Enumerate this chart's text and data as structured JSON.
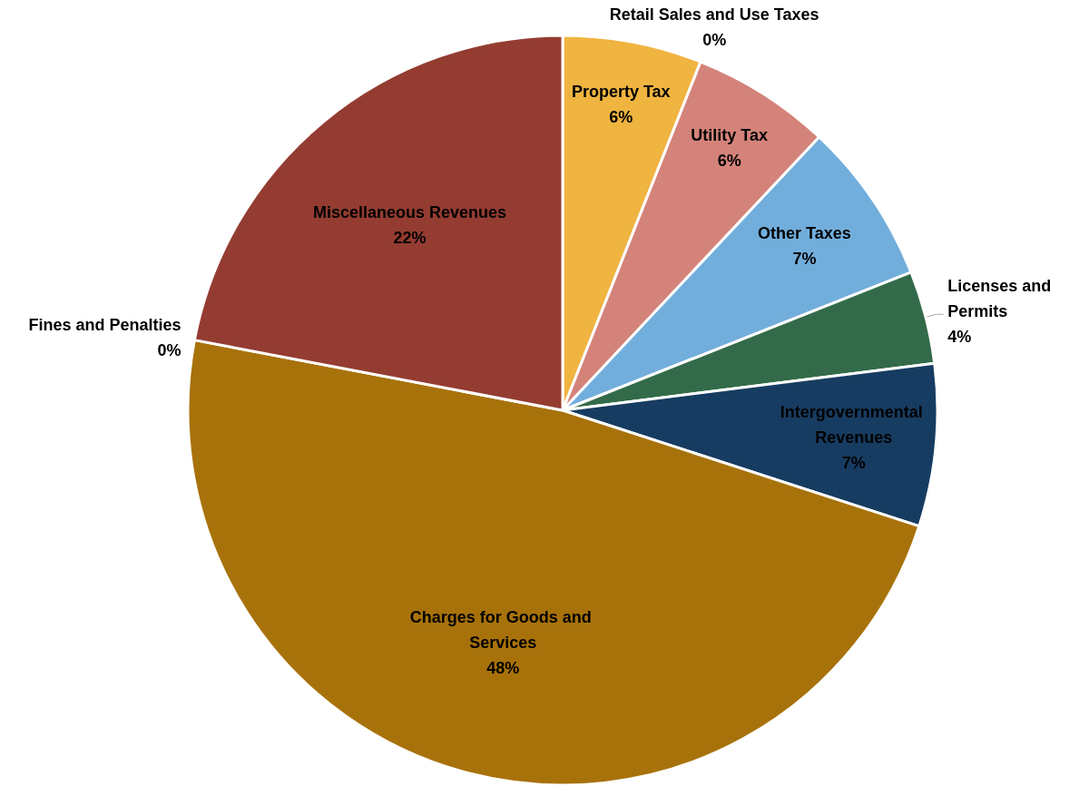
{
  "chart_data": {
    "type": "pie",
    "categories": [
      "Property Tax",
      "Retail Sales and Use Taxes",
      "Utility Tax",
      "Other Taxes",
      "Licenses and Permits",
      "Intergovernmental Revenues",
      "Charges for Goods and Services",
      "Fines and Penalties",
      "Miscellaneous Revenues"
    ],
    "values": [
      6,
      0,
      6,
      7,
      4,
      7,
      48,
      0,
      22
    ],
    "value_labels": [
      "6%",
      "0%",
      "6%",
      "7%",
      "4%",
      "7%",
      "48%",
      "0%",
      "22%"
    ],
    "colors": [
      "#f0b441",
      "#a5a5a5",
      "#d4837a",
      "#72aedc",
      "#336b4a",
      "#173c61",
      "#a8720b",
      "#7f7f7f",
      "#943c31"
    ]
  }
}
